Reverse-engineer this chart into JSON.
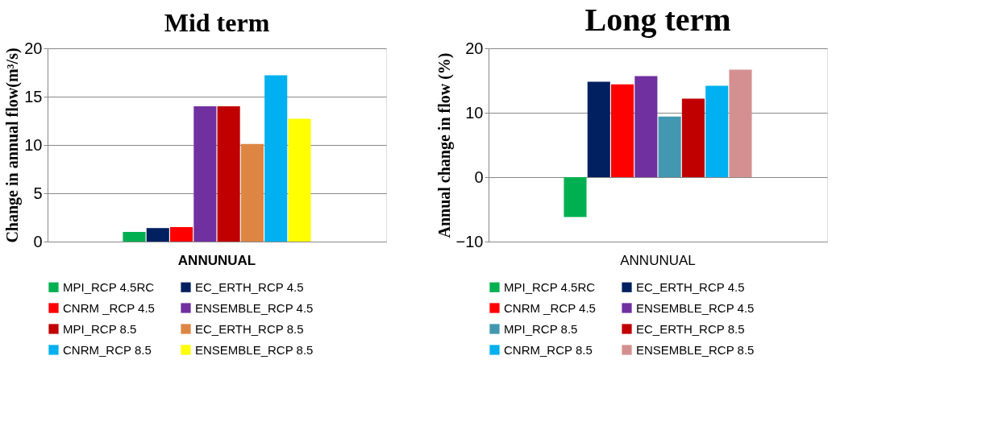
{
  "chart_data": [
    {
      "type": "bar",
      "title": "Mid term",
      "ylabel": "Change in annual flow(m³/s)",
      "categories": [
        "ANNUNUAL"
      ],
      "ylim": [
        0,
        20
      ],
      "yticks": [
        0,
        5,
        10,
        15,
        20
      ],
      "grid": "y",
      "legend": "bottom",
      "series": [
        {
          "name": "MPI_RCP 4.5RC",
          "color": "#00b050",
          "values": [
            1.0
          ]
        },
        {
          "name": "EC_ERTH_RCP 4.5",
          "color": "#002060",
          "values": [
            1.4
          ]
        },
        {
          "name": "CNRM _RCP 4.5",
          "color": "#ff0000",
          "values": [
            1.5
          ]
        },
        {
          "name": "ENSEMBLE_RCP 4.5",
          "color": "#7030a0",
          "values": [
            14.0
          ]
        },
        {
          "name": "MPI_RCP 8.5",
          "color": "#c00000",
          "values": [
            14.0
          ]
        },
        {
          "name": "EC_ERTH_RCP 8.5",
          "color": "#dd8643",
          "values": [
            10.1
          ]
        },
        {
          "name": "CNRM_RCP 8.5",
          "color": "#00b0f0",
          "values": [
            17.2
          ]
        },
        {
          "name": "ENSEMBLE_RCP 8.5",
          "color": "#ffff00",
          "values": [
            12.7
          ]
        }
      ]
    },
    {
      "type": "bar",
      "title": "Long term",
      "ylabel": "Annual change in flow (%)",
      "categories": [
        "ANNUNUAL"
      ],
      "ylim": [
        -10,
        20
      ],
      "yticks": [
        -10,
        0,
        10,
        20
      ],
      "grid": "y",
      "legend": "bottom",
      "series": [
        {
          "name": "MPI_RCP 4.5RC",
          "color": "#00b050",
          "values": [
            -6.2
          ]
        },
        {
          "name": "EC_ERTH_RCP 4.5",
          "color": "#002060",
          "values": [
            14.8
          ]
        },
        {
          "name": "CNRM _RCP 4.5",
          "color": "#ff0000",
          "values": [
            14.4
          ]
        },
        {
          "name": "ENSEMBLE_RCP 4.5",
          "color": "#7030a0",
          "values": [
            15.7
          ]
        },
        {
          "name": "MPI_RCP 8.5",
          "color": "#4397b0",
          "values": [
            9.4
          ]
        },
        {
          "name": "EC_ERTH_RCP 8.5",
          "color": "#c00000",
          "values": [
            12.2
          ]
        },
        {
          "name": "CNRM_RCP 8.5",
          "color": "#00b0f0",
          "values": [
            14.2
          ]
        },
        {
          "name": "ENSEMBLE_RCP 8.5",
          "color": "#d49090",
          "values": [
            16.7
          ]
        }
      ]
    }
  ]
}
